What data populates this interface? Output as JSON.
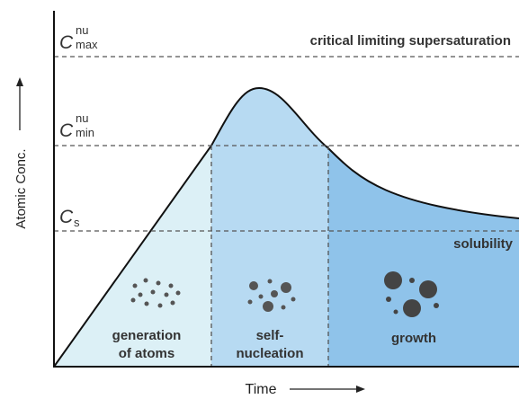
{
  "levels": {
    "c_max": {
      "symbol": "C",
      "sup": "nu",
      "sub": "max",
      "label": "critical limiting supersaturation"
    },
    "c_min": {
      "symbol": "C",
      "sup": "nu",
      "sub": "min"
    },
    "c_s": {
      "symbol": "C",
      "sub": "s",
      "label": "solubility"
    }
  },
  "regions": [
    {
      "lines": [
        "generation",
        "of atoms"
      ]
    },
    {
      "lines": [
        "self-",
        "nucleation"
      ]
    },
    {
      "lines": [
        "growth"
      ]
    }
  ],
  "axes": {
    "y_label": "Atomic Conc.",
    "x_label": "Time"
  }
}
